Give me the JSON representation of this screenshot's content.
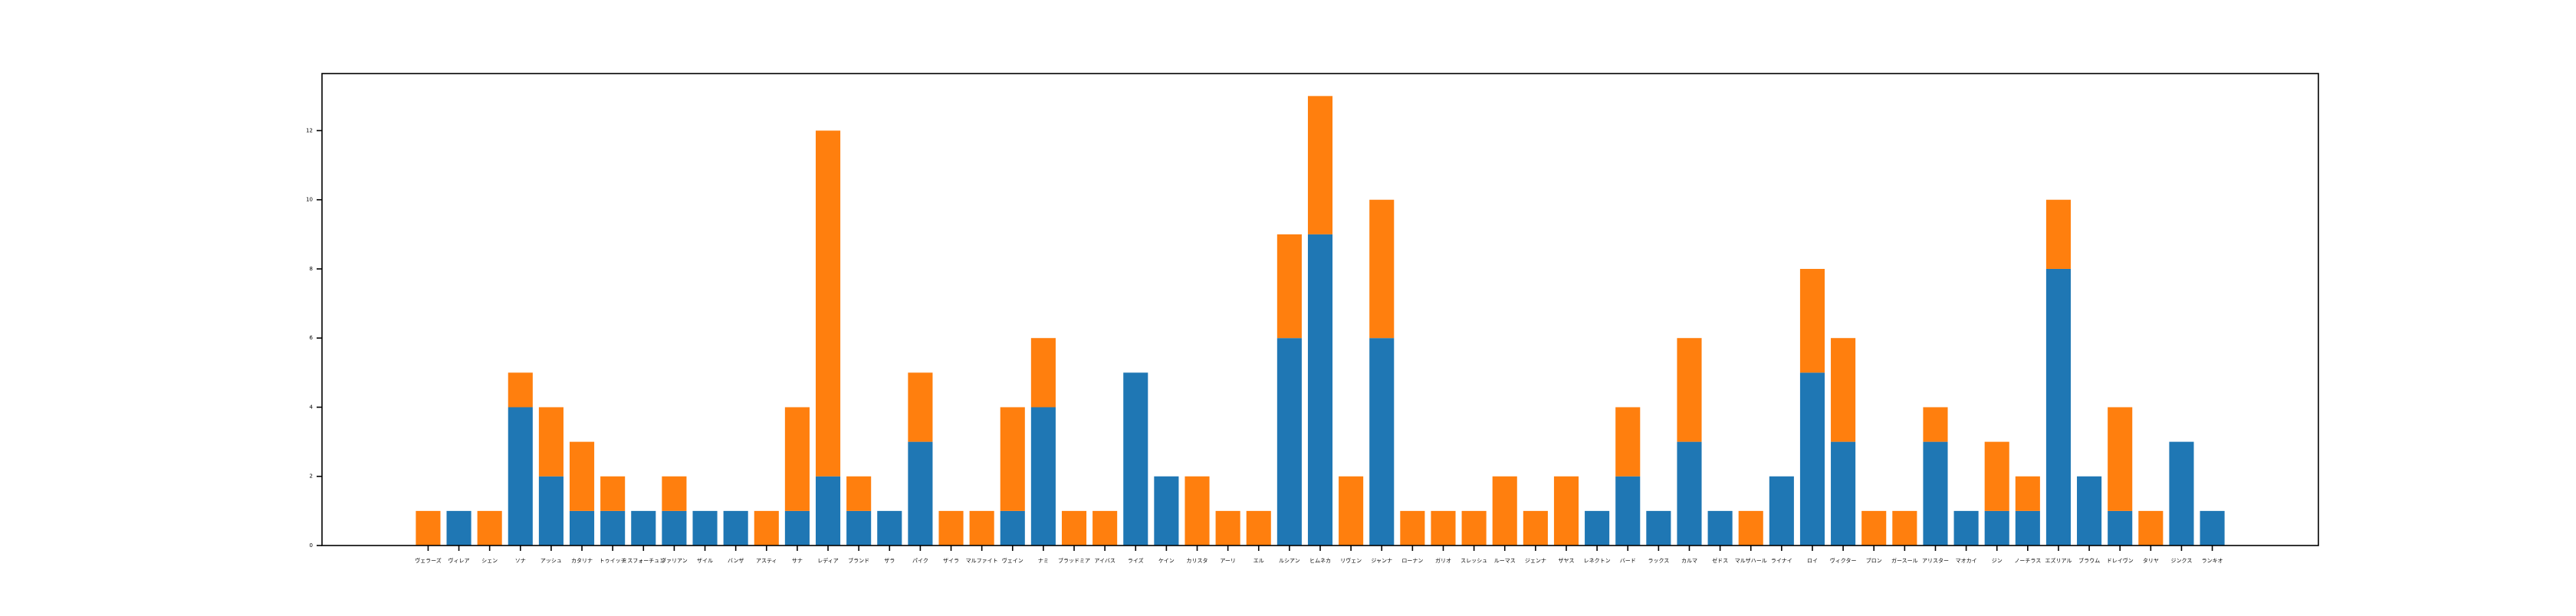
{
  "chart_data": {
    "type": "stacked_bar",
    "categories": [
      "ヴェラーズ",
      "ヴィレア",
      "シェン",
      "ソナ",
      "アッシュ",
      "カタリナ",
      "トゥイッチ",
      "ミスフォーチュン",
      "ヴァリアン",
      "ザイル",
      "バンザ",
      "アスティ",
      "サナ",
      "レディア",
      "ブランド",
      "ザラ",
      "パイク",
      "ザイラ",
      "マルファイト",
      "ヴェイン",
      "ナミ",
      "ブラッドミア",
      "アイバス",
      "ライズ",
      "ケイン",
      "カリスタ",
      "アーリ",
      "エル",
      "ルシアン",
      "ヒムネカ",
      "リヴェン",
      "ジャンナ",
      "ローナン",
      "ガリオ",
      "スレッシュ",
      "ルーマス",
      "ジェンナ",
      "ザヤス",
      "レネクトン",
      "バード",
      "ラックス",
      "カルマ",
      "ゼドス",
      "マルザハール",
      "ライナイ",
      "ロイ",
      "ヴィクター",
      "ブロン",
      "ガースール",
      "アリスター",
      "マオカイ",
      "ジン",
      "ノーチラス",
      "エズリアル",
      "ブラウム",
      "ドレイヴン",
      "タリヤ",
      "ジンクス",
      "ランキオ"
    ],
    "series": [
      {
        "color": "#1f77b4",
        "values": [
          0,
          1,
          0,
          4,
          2,
          1,
          1,
          1,
          1,
          1,
          1,
          0,
          1,
          2,
          1,
          1,
          3,
          0,
          0,
          1,
          4,
          0,
          0,
          5,
          2,
          0,
          0,
          0,
          6,
          9,
          0,
          6,
          0,
          0,
          0,
          0,
          0,
          0,
          1,
          2,
          1,
          3,
          1,
          0,
          2,
          5,
          3,
          0,
          0,
          3,
          1,
          1,
          1,
          8,
          2,
          1,
          0,
          3,
          1
        ]
      },
      {
        "color": "#ff7f0e",
        "values": [
          1,
          0,
          1,
          1,
          2,
          2,
          1,
          0,
          1,
          0,
          0,
          1,
          3,
          10,
          1,
          0,
          2,
          1,
          1,
          3,
          2,
          1,
          1,
          0,
          0,
          2,
          1,
          1,
          3,
          4,
          2,
          4,
          1,
          1,
          1,
          2,
          1,
          2,
          0,
          2,
          0,
          3,
          0,
          1,
          0,
          3,
          3,
          1,
          1,
          1,
          0,
          2,
          1,
          2,
          0,
          3,
          1,
          0,
          0
        ]
      }
    ],
    "ylim": [
      0,
      13.65
    ],
    "yticks": [
      0,
      2,
      4,
      6,
      8,
      10,
      12
    ]
  }
}
